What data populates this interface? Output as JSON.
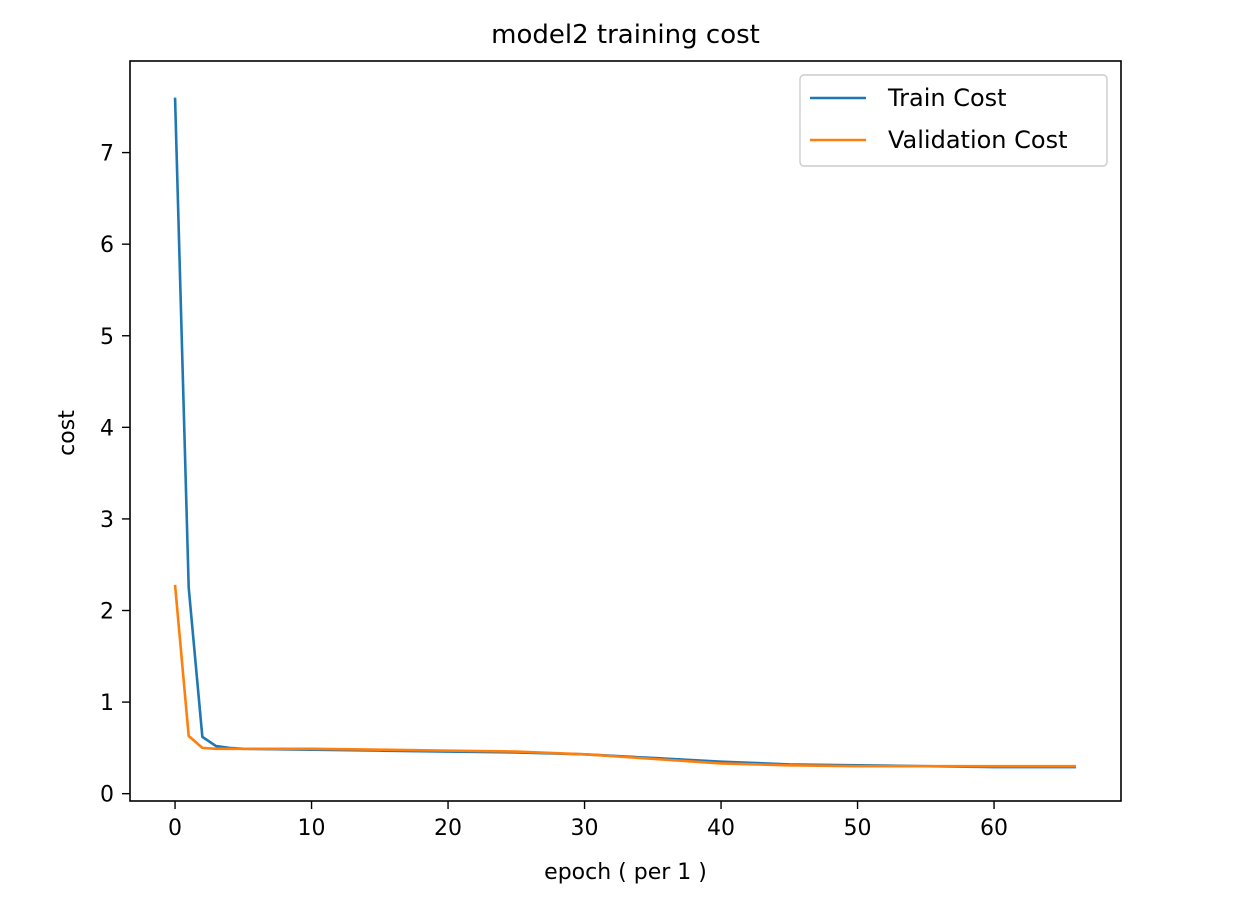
{
  "chart_data": {
    "type": "line",
    "title": "model2 training cost",
    "xlabel": "epoch ( per 1 )",
    "ylabel": "cost",
    "xlim": [
      -3.3,
      69.3
    ],
    "ylim": [
      -0.08,
      8.0
    ],
    "xticks": [
      0,
      10,
      20,
      30,
      40,
      50,
      60
    ],
    "yticks": [
      0,
      1,
      2,
      3,
      4,
      5,
      6,
      7
    ],
    "grid": false,
    "legend_position": "top-right",
    "series": [
      {
        "name": "Train Cost",
        "color": "#1f77b4",
        "x": [
          0,
          1,
          2,
          3,
          4,
          5,
          10,
          15,
          20,
          25,
          30,
          35,
          40,
          45,
          50,
          55,
          60,
          66
        ],
        "y": [
          7.6,
          2.25,
          0.62,
          0.52,
          0.5,
          0.49,
          0.48,
          0.47,
          0.46,
          0.45,
          0.43,
          0.39,
          0.35,
          0.32,
          0.31,
          0.3,
          0.29,
          0.29
        ]
      },
      {
        "name": "Validation Cost",
        "color": "#ff7f0e",
        "x": [
          0,
          1,
          2,
          3,
          4,
          5,
          10,
          15,
          20,
          25,
          30,
          35,
          40,
          45,
          50,
          55,
          60,
          66
        ],
        "y": [
          2.28,
          0.63,
          0.5,
          0.49,
          0.49,
          0.49,
          0.49,
          0.48,
          0.47,
          0.46,
          0.43,
          0.38,
          0.33,
          0.31,
          0.3,
          0.3,
          0.3,
          0.3
        ]
      }
    ]
  }
}
